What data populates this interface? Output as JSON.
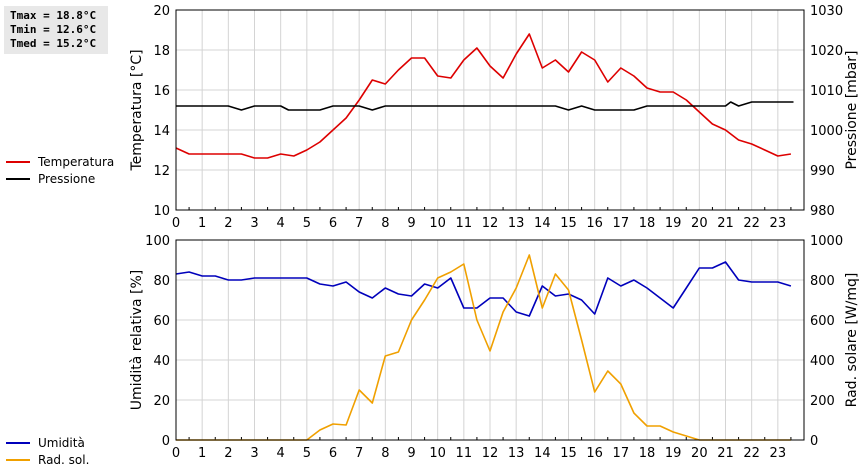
{
  "stats": {
    "tmax": "Tmax = 18.8°C",
    "tmin": "Tmin = 12.6°C",
    "tmed": "Tmed = 15.2°C"
  },
  "colors": {
    "temperatura": "#dd0000",
    "pressione": "#000000",
    "umidita": "#0000bb",
    "radiazione": "#f0a000",
    "grid": "#d4d4d4"
  },
  "chart_data": [
    {
      "type": "line",
      "ylabel": "Temperatura [°C]",
      "ylabel_right": "Pressione [mbar]",
      "xlim": [
        0,
        24
      ],
      "ylim": [
        10,
        20
      ],
      "ylim_right": [
        980,
        1030
      ],
      "x_ticks": [
        "0",
        "1",
        "2",
        "3",
        "4",
        "5",
        "6",
        "7",
        "8",
        "9",
        "10",
        "11",
        "12",
        "13",
        "14",
        "15",
        "16",
        "17",
        "18",
        "19",
        "20",
        "21",
        "22",
        "23"
      ],
      "y_ticks": [
        "10",
        "12",
        "14",
        "16",
        "18",
        "20"
      ],
      "y_ticks_right": [
        "980",
        "990",
        "1000",
        "1010",
        "1020",
        "1030"
      ],
      "series": [
        {
          "name": "Temperatura",
          "axis": "left",
          "color": "#dd0000",
          "values": [
            [
              0,
              13.1
            ],
            [
              0.5,
              12.8
            ],
            [
              1,
              12.8
            ],
            [
              2,
              12.8
            ],
            [
              2.5,
              12.8
            ],
            [
              3,
              12.6
            ],
            [
              3.5,
              12.6
            ],
            [
              4,
              12.8
            ],
            [
              4.5,
              12.7
            ],
            [
              5,
              13.0
            ],
            [
              5.5,
              13.4
            ],
            [
              6,
              14.0
            ],
            [
              6.5,
              14.6
            ],
            [
              7,
              15.5
            ],
            [
              7.5,
              16.5
            ],
            [
              8,
              16.3
            ],
            [
              8.5,
              17.0
            ],
            [
              9,
              17.6
            ],
            [
              9.5,
              17.6
            ],
            [
              10,
              16.7
            ],
            [
              10.5,
              16.6
            ],
            [
              11,
              17.5
            ],
            [
              11.5,
              18.1
            ],
            [
              12,
              17.2
            ],
            [
              12.5,
              16.6
            ],
            [
              13,
              17.8
            ],
            [
              13.5,
              18.8
            ],
            [
              14,
              17.1
            ],
            [
              14.5,
              17.5
            ],
            [
              15,
              16.9
            ],
            [
              15.5,
              17.9
            ],
            [
              16,
              17.5
            ],
            [
              16.5,
              16.4
            ],
            [
              17,
              17.1
            ],
            [
              17.5,
              16.7
            ],
            [
              18,
              16.1
            ],
            [
              18.5,
              15.9
            ],
            [
              19,
              15.9
            ],
            [
              19.5,
              15.5
            ],
            [
              20,
              14.9
            ],
            [
              20.5,
              14.3
            ],
            [
              21,
              14.0
            ],
            [
              21.5,
              13.5
            ],
            [
              22,
              13.3
            ],
            [
              22.5,
              13.0
            ],
            [
              23,
              12.7
            ],
            [
              23.5,
              12.8
            ]
          ]
        },
        {
          "name": "Pressione",
          "axis": "right",
          "color": "#000000",
          "values": [
            [
              0,
              1006
            ],
            [
              2,
              1006
            ],
            [
              2.5,
              1005
            ],
            [
              3,
              1006
            ],
            [
              4,
              1006
            ],
            [
              4.3,
              1005
            ],
            [
              5.5,
              1005
            ],
            [
              6,
              1006
            ],
            [
              7,
              1006
            ],
            [
              7.5,
              1005
            ],
            [
              8,
              1006
            ],
            [
              14.5,
              1006
            ],
            [
              15,
              1005
            ],
            [
              15.5,
              1006
            ],
            [
              16,
              1005
            ],
            [
              17.5,
              1005
            ],
            [
              18,
              1006
            ],
            [
              21,
              1006
            ],
            [
              21.2,
              1007
            ],
            [
              21.5,
              1006
            ],
            [
              22,
              1007
            ],
            [
              23.6,
              1007
            ]
          ]
        }
      ]
    },
    {
      "type": "line",
      "ylabel": "Umidità relativa [%]",
      "ylabel_right": "Rad. solare [W/mq]",
      "xlim": [
        0,
        24
      ],
      "ylim": [
        0,
        100
      ],
      "ylim_right": [
        0,
        1000
      ],
      "x_ticks": [
        "0",
        "1",
        "2",
        "3",
        "4",
        "5",
        "6",
        "7",
        "8",
        "9",
        "10",
        "11",
        "12",
        "13",
        "14",
        "15",
        "16",
        "17",
        "18",
        "19",
        "20",
        "21",
        "22",
        "23"
      ],
      "y_ticks": [
        "0",
        "20",
        "40",
        "60",
        "80",
        "100"
      ],
      "y_ticks_right": [
        "0",
        "200",
        "400",
        "600",
        "800",
        "1000"
      ],
      "series": [
        {
          "name": "Umidità",
          "axis": "left",
          "color": "#0000bb",
          "values": [
            [
              0,
              83
            ],
            [
              0.5,
              84
            ],
            [
              1,
              82
            ],
            [
              1.5,
              82
            ],
            [
              2,
              80
            ],
            [
              2.5,
              80
            ],
            [
              3,
              81
            ],
            [
              3.5,
              81
            ],
            [
              4,
              81
            ],
            [
              4.5,
              81
            ],
            [
              5,
              81
            ],
            [
              5.5,
              78
            ],
            [
              6,
              77
            ],
            [
              6.5,
              79
            ],
            [
              7,
              74
            ],
            [
              7.5,
              71
            ],
            [
              8,
              76
            ],
            [
              8.5,
              73
            ],
            [
              9,
              72
            ],
            [
              9.5,
              78
            ],
            [
              10,
              76
            ],
            [
              10.5,
              81
            ],
            [
              11,
              66
            ],
            [
              11.5,
              66
            ],
            [
              12,
              71
            ],
            [
              12.5,
              71
            ],
            [
              13,
              64
            ],
            [
              13.5,
              62
            ],
            [
              14,
              77
            ],
            [
              14.5,
              72
            ],
            [
              15,
              73
            ],
            [
              15.5,
              70
            ],
            [
              16,
              63
            ],
            [
              16.5,
              81
            ],
            [
              17,
              77
            ],
            [
              17.5,
              80
            ],
            [
              18,
              76
            ],
            [
              18.5,
              71
            ],
            [
              19,
              66
            ],
            [
              19.5,
              76
            ],
            [
              20,
              86
            ],
            [
              20.5,
              86
            ],
            [
              21,
              89
            ],
            [
              21.5,
              80
            ],
            [
              22,
              79
            ],
            [
              23,
              79
            ],
            [
              23.5,
              77
            ]
          ]
        },
        {
          "name": "Rad. sol.",
          "axis": "right",
          "color": "#f0a000",
          "values": [
            [
              0,
              0
            ],
            [
              5,
              0
            ],
            [
              5.5,
              50
            ],
            [
              6,
              80
            ],
            [
              6.5,
              75
            ],
            [
              7,
              250
            ],
            [
              7.5,
              185
            ],
            [
              8,
              420
            ],
            [
              8.5,
              440
            ],
            [
              9,
              600
            ],
            [
              9.5,
              700
            ],
            [
              10,
              810
            ],
            [
              10.5,
              840
            ],
            [
              11,
              880
            ],
            [
              11.5,
              600
            ],
            [
              12,
              445
            ],
            [
              12.5,
              640
            ],
            [
              13,
              760
            ],
            [
              13.5,
              925
            ],
            [
              14,
              660
            ],
            [
              14.5,
              830
            ],
            [
              15,
              750
            ],
            [
              15.5,
              500
            ],
            [
              16,
              240
            ],
            [
              16.5,
              345
            ],
            [
              17,
              280
            ],
            [
              17.5,
              135
            ],
            [
              18,
              70
            ],
            [
              18.5,
              70
            ],
            [
              19,
              40
            ],
            [
              19.5,
              20
            ],
            [
              20,
              0
            ],
            [
              23.5,
              0
            ]
          ]
        }
      ]
    }
  ],
  "legend_top": [
    {
      "label": "Temperatura",
      "color": "#dd0000"
    },
    {
      "label": "Pressione",
      "color": "#000000"
    }
  ],
  "legend_bottom": [
    {
      "label": "Umidità",
      "color": "#0000bb"
    },
    {
      "label": "Rad. sol.",
      "color": "#f0a000"
    }
  ]
}
